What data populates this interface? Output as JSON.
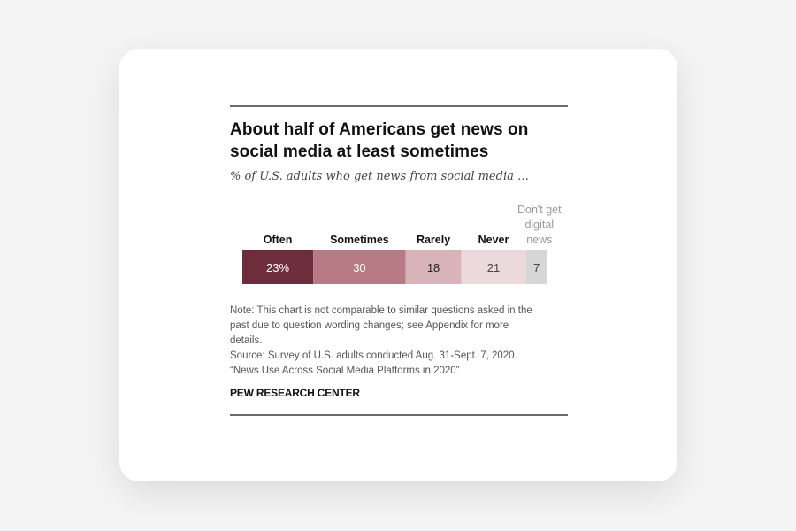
{
  "figure": {
    "title_line1": "About half of Americans get news on",
    "title_line2": "social media at least sometimes",
    "subtitle": "% of U.S. adults who get news from social media …",
    "note_line1": "Note: This chart is not comparable to similar questions asked in the",
    "note_line2": "past due to question wording changes; see Appendix for more",
    "note_line3": "details.",
    "source": "Source: Survey of U.S. adults conducted Aug. 31-Sept. 7, 2020.",
    "report": "“News Use Across Social Media Platforms in 2020”",
    "brand": "PEW RESEARCH CENTER"
  },
  "colors": {
    "often": "#6e2c3c",
    "sometimes": "#b87b85",
    "rarely": "#d8b4ba",
    "never": "#ecd9dc",
    "dont_get": "#d6d6d6",
    "rule": "#6b6b6b"
  },
  "chart_data": {
    "type": "bar",
    "orientation": "horizontal-stacked",
    "categories": [
      "Often",
      "Sometimes",
      "Rarely",
      "Never",
      "Don't get digital news"
    ],
    "category_lines": [
      [
        "Often"
      ],
      [
        "Sometimes"
      ],
      [
        "Rarely"
      ],
      [
        "Never"
      ],
      [
        "Don't get",
        "digital",
        "news"
      ]
    ],
    "values": [
      23,
      30,
      18,
      21,
      7
    ],
    "value_labels": [
      "23%",
      "30",
      "18",
      "21",
      "7"
    ],
    "title": "About half of Americans get news on social media at least sometimes",
    "subtitle": "% of U.S. adults who get news from social media …",
    "xlabel": "",
    "ylabel": "",
    "grid": false,
    "legend": "none"
  }
}
